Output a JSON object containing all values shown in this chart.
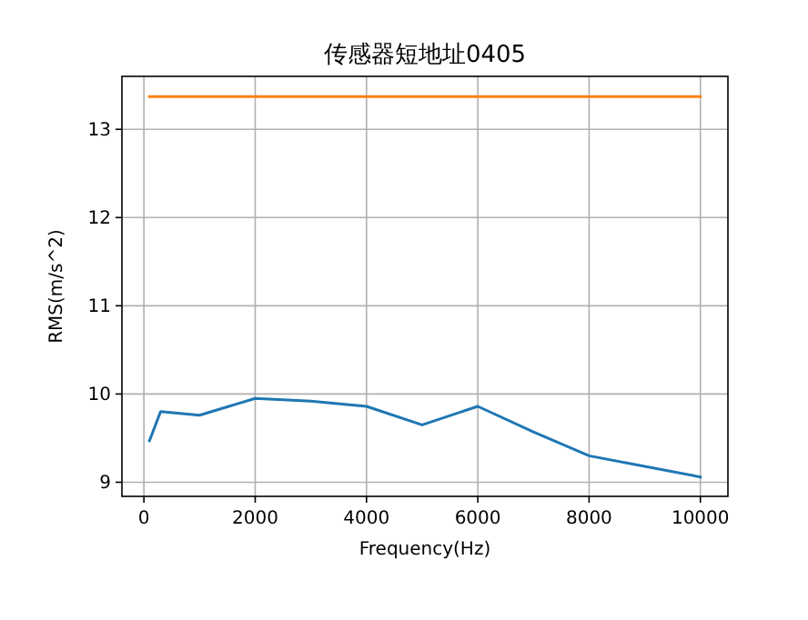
{
  "chart_data": {
    "type": "line",
    "title": "传感器短地址0405",
    "xlabel": "Frequency(Hz)",
    "ylabel": "RMS(m/s^2)",
    "xlim": [
      -395,
      10495
    ],
    "ylim": [
      8.84,
      13.6
    ],
    "xticks": [
      0,
      2000,
      4000,
      6000,
      8000,
      10000
    ],
    "yticks": [
      9,
      10,
      11,
      12,
      13
    ],
    "grid": true,
    "series": [
      {
        "color": "#1f77b4",
        "x": [
          100,
          300,
          1000,
          2000,
          3000,
          4000,
          5000,
          6000,
          7000,
          8000,
          9000,
          10000
        ],
        "values": [
          9.47,
          9.8,
          9.76,
          9.95,
          9.92,
          9.86,
          9.65,
          9.86,
          9.57,
          9.3,
          9.18,
          9.06
        ]
      },
      {
        "color": "#ff7f0e",
        "x": [
          100,
          10000
        ],
        "values": [
          13.37,
          13.37
        ]
      }
    ]
  }
}
